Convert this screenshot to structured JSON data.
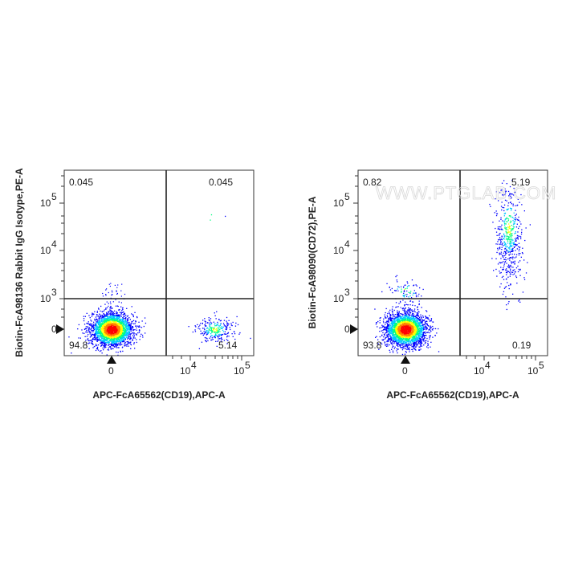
{
  "watermark": "WWW.PTGLAB.COM",
  "chart_data": [
    {
      "type": "scatter",
      "subtype": "flow-cytometry-density-dot-plot",
      "xlabel": "APC-FcA65562(CD19),APC-A",
      "ylabel": "Biotin-FcA98136 Rabbit IgG Isotype,PE-A",
      "x_ticks": [
        "0",
        "10",
        "10"
      ],
      "x_tick_exponents": [
        "",
        "4",
        "5"
      ],
      "y_ticks": [
        "0",
        "10",
        "10",
        "10"
      ],
      "y_tick_exponents": [
        "",
        "3",
        "4",
        "5"
      ],
      "x_scale": "biexponential",
      "y_scale": "biexponential",
      "quadrants": {
        "upper_left": "0.045",
        "upper_right": "0.045",
        "lower_left": "94.8",
        "lower_right": "5.14"
      },
      "populations": [
        {
          "center": [
            0,
            0
          ],
          "count": 2600,
          "spread": "dense"
        },
        {
          "center": [
            30000,
            0
          ],
          "count": 260,
          "spread": "sparse"
        },
        {
          "center": [
            30000,
            50000
          ],
          "count": 3,
          "spread": "sparse"
        }
      ],
      "color_scale": [
        "#0000ff",
        "#00c8ff",
        "#00ff80",
        "#ffff00",
        "#ff8000",
        "#ff0000"
      ]
    },
    {
      "type": "scatter",
      "subtype": "flow-cytometry-density-dot-plot",
      "xlabel": "APC-FcA65562(CD19),APC-A",
      "ylabel": "Biotin-FcA98090(CD72),PE-A",
      "x_ticks": [
        "0",
        "10",
        "10"
      ],
      "x_tick_exponents": [
        "",
        "4",
        "5"
      ],
      "y_ticks": [
        "0",
        "10",
        "10",
        "10"
      ],
      "y_tick_exponents": [
        "",
        "3",
        "4",
        "5"
      ],
      "x_scale": "biexponential",
      "y_scale": "biexponential",
      "quadrants": {
        "upper_left": "0.82",
        "upper_right": "5.19",
        "lower_left": "93.8",
        "lower_right": "0.19"
      },
      "populations": [
        {
          "center": [
            0,
            0
          ],
          "count": 2600,
          "spread": "dense"
        },
        {
          "center": [
            30000,
            30000
          ],
          "count": 520,
          "spread": "elongated"
        },
        {
          "center": [
            0,
            1500
          ],
          "count": 60,
          "spread": "sparse"
        }
      ],
      "color_scale": [
        "#0000ff",
        "#00c8ff",
        "#00ff80",
        "#ffff00",
        "#ff8000",
        "#ff0000"
      ]
    }
  ]
}
